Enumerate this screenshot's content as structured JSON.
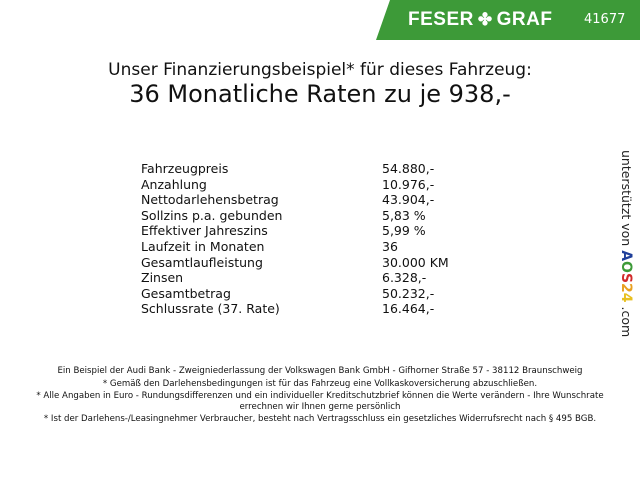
{
  "header": {
    "brand_left": "FESER",
    "brand_right": "GRAF",
    "brand_icon": "clover-icon",
    "dealer_number": "41677",
    "brand_color": "#3d9a38"
  },
  "title": {
    "line1": "Unser Finanzierungsbeispiel* für dieses Fahrzeug:",
    "line2": "36 Monatliche Raten zu je 938,-"
  },
  "finance_rows": [
    {
      "label": "Fahrzeugpreis",
      "value": "54.880,-"
    },
    {
      "label": "Anzahlung",
      "value": "10.976,-"
    },
    {
      "label": "Nettodarlehensbetrag",
      "value": "43.904,-"
    },
    {
      "label": "Sollzins p.a. gebunden",
      "value": "5,83 %"
    },
    {
      "label": "Effektiver Jahreszins",
      "value": "5,99 %"
    },
    {
      "label": "Laufzeit in Monaten",
      "value": "36"
    },
    {
      "label": "Gesamtlaufleistung",
      "value": "30.000 KM"
    },
    {
      "label": "Zinsen",
      "value": "6.328,-"
    },
    {
      "label": "Gesamtbetrag",
      "value": "50.232,-"
    },
    {
      "label": "Schlussrate (37. Rate)",
      "value": "16.464,-"
    }
  ],
  "sidebar": {
    "supported_by": "unterstützt von",
    "aos_letters": [
      "A",
      "O",
      "S",
      "2",
      "4"
    ],
    "domain": ".com"
  },
  "footer": [
    "Ein Beispiel der Audi Bank - Zweigniederlassung der Volkswagen Bank GmbH - Gifhorner Straße 57 - 38112 Braunschweig",
    "* Gemäß den Darlehensbedingungen ist für das Fahrzeug eine Vollkaskoversicherung abzuschließen.",
    "* Alle Angaben in Euro - Rundungsdifferenzen und ein individueller Kreditschutzbrief können die Werte verändern - Ihre Wunschrate errechnen wir Ihnen gerne persönlich",
    "* Ist der Darlehens-/Leasingnehmer Verbraucher, besteht nach Vertragsschluss ein gesetzliches Widerrufsrecht nach § 495 BGB."
  ]
}
